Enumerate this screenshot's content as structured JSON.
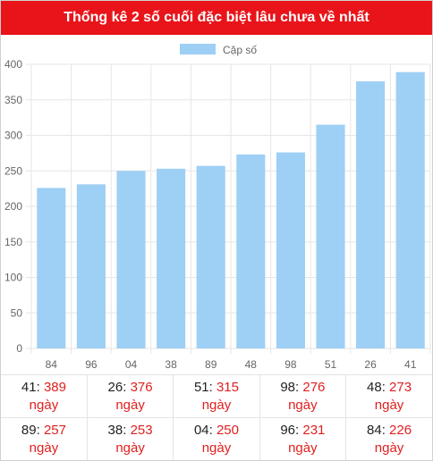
{
  "header": {
    "title": "Thống kê 2 số cuối đặc biệt lâu chưa về nhất"
  },
  "colors": {
    "header_bg": "#e8141a",
    "bar_fill": "#9ecff5",
    "value_text": "#e0201f",
    "grid": "#e6e6e6"
  },
  "chart_data": {
    "type": "bar",
    "categories": [
      "84",
      "96",
      "04",
      "38",
      "89",
      "48",
      "98",
      "51",
      "26",
      "41"
    ],
    "series": [
      {
        "name": "Cặp số",
        "values": [
          226,
          231,
          250,
          253,
          257,
          273,
          276,
          315,
          376,
          389
        ]
      }
    ],
    "ylim": [
      0,
      400
    ],
    "yticks": [
      0,
      50,
      100,
      150,
      200,
      250,
      300,
      350,
      400
    ],
    "grid": true,
    "legend": "top-center"
  },
  "stats": {
    "unit": "ngày",
    "rows": [
      [
        {
          "num": "41",
          "val": "389"
        },
        {
          "num": "26",
          "val": "376"
        },
        {
          "num": "51",
          "val": "315"
        },
        {
          "num": "98",
          "val": "276"
        },
        {
          "num": "48",
          "val": "273"
        }
      ],
      [
        {
          "num": "89",
          "val": "257"
        },
        {
          "num": "38",
          "val": "253"
        },
        {
          "num": "04",
          "val": "250"
        },
        {
          "num": "96",
          "val": "231"
        },
        {
          "num": "84",
          "val": "226"
        }
      ]
    ]
  }
}
